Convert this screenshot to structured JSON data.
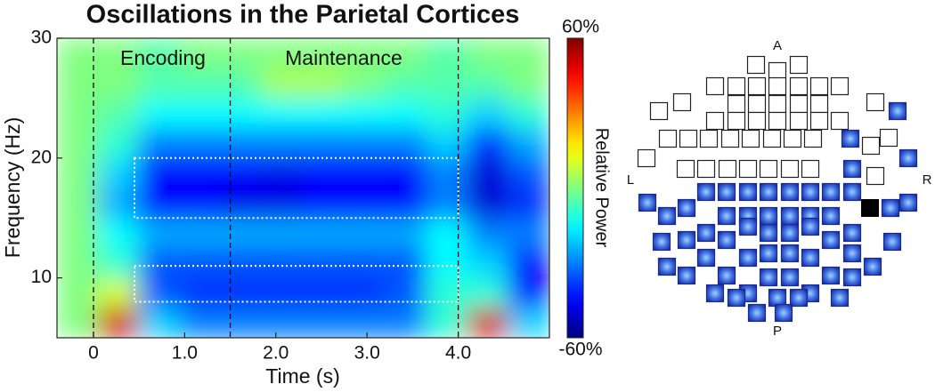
{
  "chart_data": {
    "type": "heatmap",
    "title": "Oscillations in the Parietal Cortices",
    "x_label": "Time (s)",
    "y_label": "Frequency (Hz)",
    "colorbar_label": "Relative Power",
    "xlim": [
      -0.4,
      5.0
    ],
    "ylim": [
      5,
      30
    ],
    "xticks": [
      0,
      {
        "value": 1,
        "label": "1.0"
      },
      {
        "value": 2,
        "label": "2.0"
      },
      {
        "value": 3,
        "label": "3.0"
      },
      {
        "value": 4,
        "label": "4.0"
      }
    ],
    "yticks": [
      10,
      20,
      30
    ],
    "clim": [
      -60,
      60
    ],
    "cticks": [
      {
        "value": 60,
        "label": "60%"
      },
      {
        "value": -60,
        "label": "-60%"
      }
    ],
    "colormap": "jet",
    "xbins": [
      -0.4,
      0.05,
      0.5,
      0.95,
      1.4,
      1.85,
      2.3,
      2.75,
      3.2,
      3.65,
      4.1,
      4.55,
      5.0
    ],
    "ybins": [
      5,
      7.5,
      10,
      12.5,
      15,
      17.5,
      20,
      22.5,
      25,
      27.5,
      30
    ],
    "values": [
      [
        0,
        50,
        -20,
        -30,
        -30,
        -30,
        -30,
        -30,
        -30,
        -10,
        50,
        -20
      ],
      [
        0,
        10,
        -35,
        -40,
        -40,
        -40,
        -40,
        -40,
        -35,
        -10,
        -10,
        -45
      ],
      [
        0,
        -10,
        -35,
        -35,
        -35,
        -35,
        -35,
        -35,
        -35,
        -15,
        -20,
        -45
      ],
      [
        0,
        -15,
        -25,
        -25,
        -25,
        -25,
        -25,
        -25,
        -25,
        -15,
        -30,
        -30
      ],
      [
        0,
        -25,
        -45,
        -45,
        -48,
        -48,
        -45,
        -45,
        -45,
        -30,
        -50,
        -40
      ],
      [
        0,
        -20,
        -45,
        -45,
        -45,
        -48,
        -45,
        -45,
        -45,
        -30,
        -50,
        -35
      ],
      [
        0,
        -10,
        -30,
        -30,
        -30,
        -30,
        -30,
        -30,
        -30,
        -20,
        -40,
        -25
      ],
      [
        0,
        -5,
        -15,
        -15,
        -15,
        -15,
        -15,
        -15,
        -15,
        -10,
        -20,
        -10
      ],
      [
        0,
        0,
        -5,
        -5,
        -5,
        5,
        5,
        0,
        -5,
        -5,
        -5,
        0
      ],
      [
        0,
        0,
        -5,
        0,
        0,
        0,
        0,
        0,
        0,
        -5,
        0,
        0
      ]
    ],
    "event_lines": [
      0,
      1.5,
      4.0
    ],
    "boxes": [
      {
        "x": [
          0.45,
          4.0
        ],
        "y": [
          15,
          20
        ]
      },
      {
        "x": [
          0.45,
          4.0
        ],
        "y": [
          8,
          11
        ]
      }
    ],
    "annotations": [
      "Encoding",
      "Maintenance"
    ]
  },
  "sensor_map": {
    "labels": {
      "anterior": "A",
      "left": "L",
      "right": "R",
      "posterior": "P"
    }
  }
}
